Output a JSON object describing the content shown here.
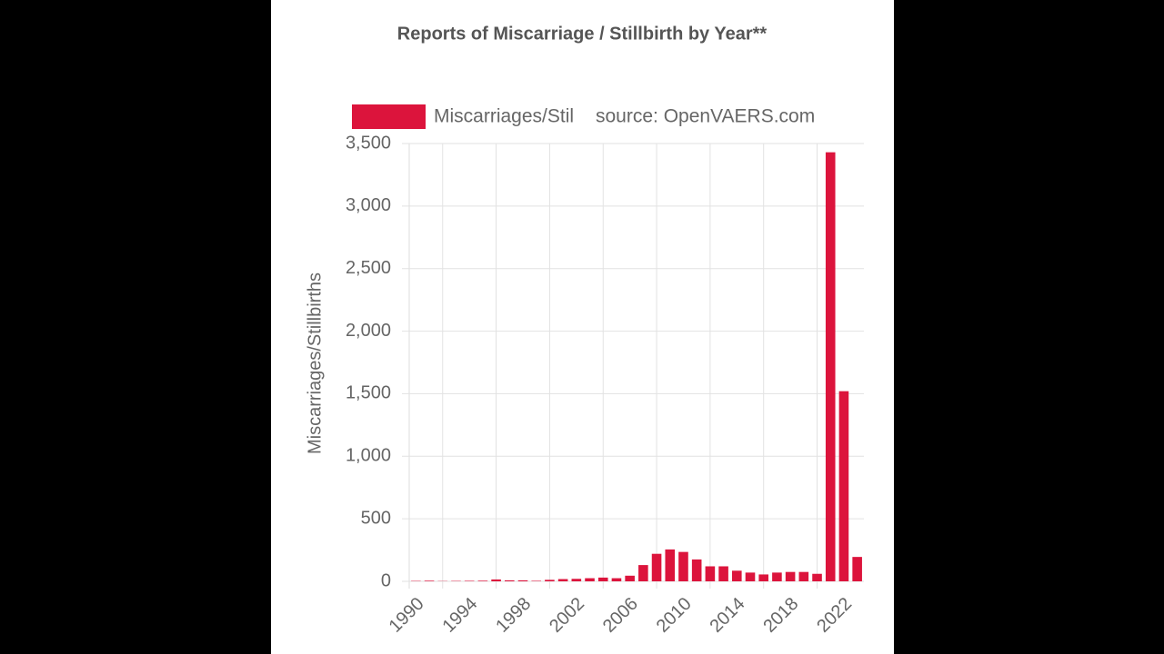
{
  "chart_data": {
    "type": "bar",
    "title": "Reports of Miscarriage / Stillbirth by Year**",
    "source": "source: OpenVAERS.com",
    "y_label": "Miscarriages/Stillbirths",
    "categories": [
      "1990",
      null,
      null,
      null,
      "1994",
      null,
      null,
      null,
      "1998",
      null,
      null,
      null,
      "2002",
      null,
      null,
      null,
      "2006",
      null,
      null,
      null,
      "2010",
      null,
      null,
      null,
      "2014",
      null,
      null,
      null,
      "2018",
      null,
      null,
      null,
      "2022",
      null
    ],
    "series": [
      {
        "name": "Miscarriages/Stil",
        "color": "#dc143c",
        "values": [
          3,
          5,
          2,
          3,
          4,
          5,
          15,
          8,
          8,
          4,
          12,
          18,
          20,
          25,
          30,
          25,
          45,
          130,
          220,
          255,
          235,
          175,
          120,
          120,
          85,
          70,
          55,
          70,
          75,
          75,
          60,
          3430,
          1520,
          195
        ]
      }
    ],
    "ylim": [
      0,
      3500
    ],
    "yticks": [
      0,
      500,
      {
        "value": 1000,
        "label": "1,000"
      },
      {
        "value": 1500,
        "label": "1,500"
      },
      {
        "value": 2000,
        "label": "2,000"
      },
      {
        "value": 2500,
        "label": "2,500"
      },
      {
        "value": 3000,
        "label": "3,000"
      },
      {
        "value": 3500,
        "label": "3,500"
      }
    ],
    "grid": true
  }
}
